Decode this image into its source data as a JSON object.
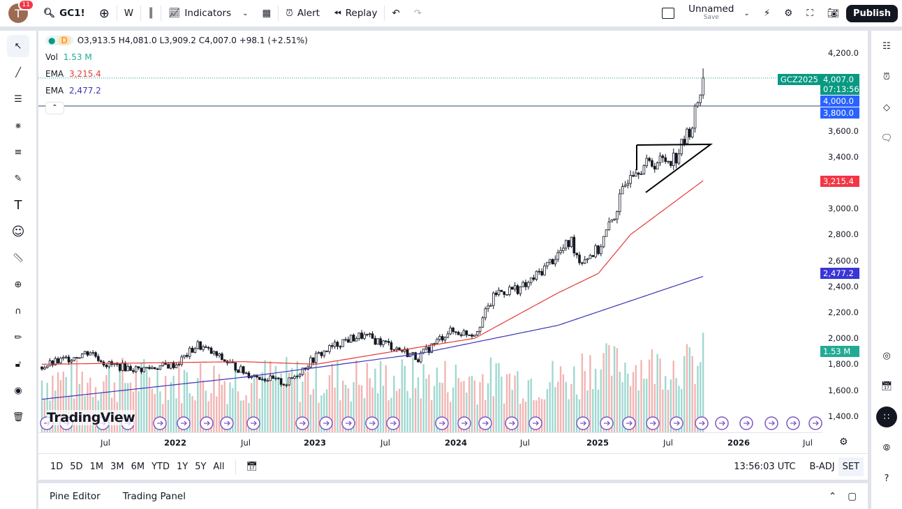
{
  "topbar": {
    "avatar_letter": "T",
    "notification_count": "11",
    "symbol": "GC1!",
    "interval": "W",
    "indicators": "Indicators",
    "alert": "Alert",
    "replay": "Replay",
    "layout_name": "Unnamed",
    "layout_sub": "Save",
    "publish": "Publish"
  },
  "legend": {
    "interval_badge": "D",
    "ohlc": "O3,913.5 H4,081.0 L3,909.2 C4,007.0 +98.1 (+2.51%)",
    "vol_label": "Vol",
    "vol_value": "1.53 M",
    "ema1_label": "EMA",
    "ema1_value": "3,215.4",
    "ema2_label": "EMA",
    "ema2_value": "2,477.2"
  },
  "price_axis": {
    "ticks": [
      "4,200.0",
      "3,600.0",
      "3,400.0",
      "3,000.0",
      "2,800.0",
      "2,600.0",
      "2,400.0",
      "2,200.0",
      "2,000.0",
      "1,800.0",
      "1,600.0",
      "1,400.0"
    ],
    "ticker_label": "GCZ2025",
    "last_price": "4,007.0",
    "countdown": "07:13:56",
    "range_hi": "4,000.0",
    "range_lo": "3,800.0",
    "ema1_tag": "3,215.4",
    "ema2_tag": "2,477.2",
    "vol_tag": "1.53 M"
  },
  "time_axis": [
    "Jul",
    "2022",
    "Jul",
    "2023",
    "Jul",
    "2024",
    "Jul",
    "2025",
    "Jul",
    "2026",
    "Jul"
  ],
  "watermark": "TradingView",
  "colors": {
    "up": "#26a69a",
    "down": "#ef5350",
    "ema1": "#e53935",
    "ema2": "#3a35b5",
    "accent": "#2962ff"
  },
  "chart_data": {
    "type": "candlestick",
    "price_path_weeks": [
      0,
      18,
      24,
      36,
      50,
      58,
      76,
      91,
      102,
      112,
      119,
      128,
      140,
      151,
      161,
      169,
      180,
      192,
      197,
      200,
      207,
      213,
      219,
      227,
      236,
      242,
      246
    ],
    "price_path_close": [
      1780,
      1900,
      1800,
      1760,
      1800,
      1950,
      1730,
      1650,
      1860,
      1980,
      2020,
      1960,
      1850,
      2050,
      2040,
      2350,
      2400,
      2650,
      2750,
      2600,
      2680,
      2950,
      3300,
      3350,
      3400,
      3650,
      4007
    ],
    "ema1_weeks": [
      0,
      75,
      102,
      140,
      161,
      192,
      207,
      219,
      246
    ],
    "ema1_values": [
      1800,
      1820,
      1800,
      1930,
      2000,
      2350,
      2500,
      2800,
      3215.4
    ],
    "ema2_weeks": [
      0,
      75,
      140,
      192,
      246
    ],
    "ema2_values": [
      1530,
      1700,
      1880,
      2100,
      2477.2
    ]
  },
  "range_bar": {
    "ranges": [
      "1D",
      "5D",
      "1M",
      "3M",
      "6M",
      "YTD",
      "1Y",
      "5Y",
      "All"
    ],
    "time": "13:56:03 UTC",
    "badj": "B-ADJ",
    "session": "SET"
  },
  "bottom_panel": {
    "tabs": [
      "Pine Editor",
      "Trading Panel"
    ]
  }
}
